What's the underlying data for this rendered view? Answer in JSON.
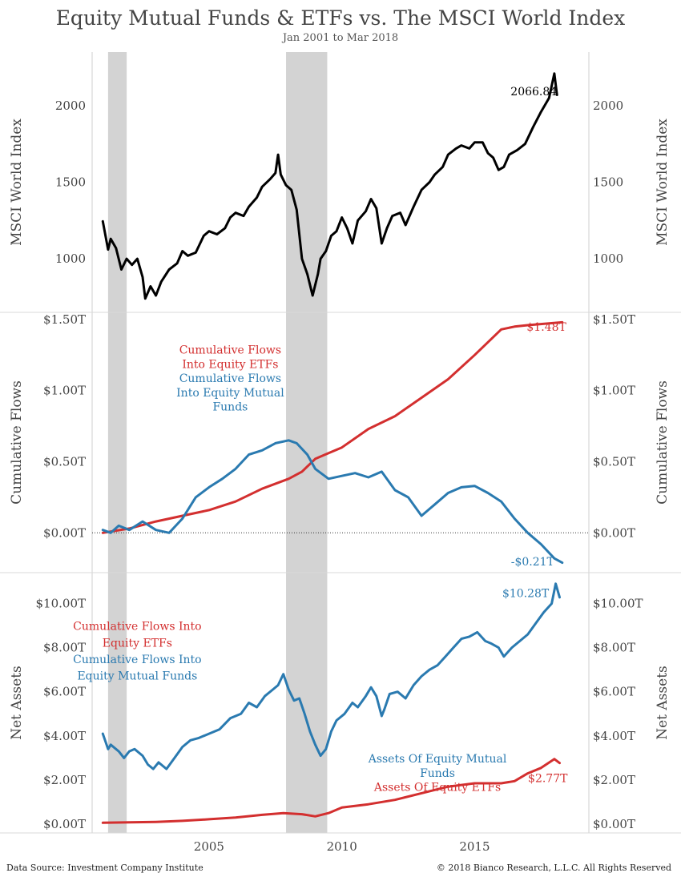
{
  "header": {
    "title": "Equity Mutual Funds & ETFs vs. The MSCI World Index",
    "subtitle": "Jan 2001 to Mar 2018"
  },
  "footer": {
    "source": "Data Source: Investment Company Institute",
    "copyright": "© 2018 Bianco Research, L.L.C. All Rights Reserved"
  },
  "colors": {
    "msci": "#000000",
    "etf": "#d32f2f",
    "mutual": "#2a7ab0",
    "recession": "#d3d3d3"
  },
  "chart_data": {
    "type": "line",
    "x_ticks": [
      2005,
      2010,
      2015
    ],
    "xlim": [
      2000.6,
      2019.3
    ],
    "recessions": [
      [
        2001.2,
        2001.9
      ],
      [
        2007.9,
        2009.45
      ]
    ],
    "panels": [
      {
        "id": "msci",
        "ylabel": "MSCI World Index",
        "ylim": [
          650,
          2350
        ],
        "y_ticks": [
          1000,
          1500,
          2000
        ],
        "y_tick_labels": [
          "1000",
          "1500",
          "2000"
        ],
        "annotations": [],
        "end_labels": [
          {
            "series": "MSCI World Index",
            "text": "2066.84",
            "x": 2018.1,
            "y": 2066.84
          }
        ],
        "series": [
          {
            "color": "msci",
            "x": [
              2001.0,
              2001.2,
              2001.3,
              2001.5,
              2001.7,
              2001.9,
              2002.1,
              2002.3,
              2002.5,
              2002.6,
              2002.8,
              2003.0,
              2003.2,
              2003.5,
              2003.8,
              2004.0,
              2004.2,
              2004.5,
              2004.8,
              2005.0,
              2005.3,
              2005.6,
              2005.8,
              2006.0,
              2006.3,
              2006.5,
              2006.8,
              2007.0,
              2007.3,
              2007.5,
              2007.6,
              2007.7,
              2007.9,
              2008.1,
              2008.3,
              2008.5,
              2008.7,
              2008.9,
              2009.1,
              2009.2,
              2009.4,
              2009.6,
              2009.8,
              2010.0,
              2010.2,
              2010.4,
              2010.6,
              2010.9,
              2011.1,
              2011.3,
              2011.5,
              2011.7,
              2011.9,
              2012.2,
              2012.4,
              2012.7,
              2013.0,
              2013.3,
              2013.5,
              2013.8,
              2014.0,
              2014.3,
              2014.5,
              2014.8,
              2015.0,
              2015.3,
              2015.5,
              2015.7,
              2015.9,
              2016.1,
              2016.3,
              2016.6,
              2016.9,
              2017.2,
              2017.5,
              2017.8,
              2018.0,
              2018.1
            ],
            "y": [
              1245,
              1060,
              1130,
              1070,
              930,
              1000,
              960,
              1000,
              880,
              740,
              820,
              760,
              850,
              930,
              970,
              1050,
              1020,
              1040,
              1150,
              1180,
              1160,
              1200,
              1270,
              1300,
              1280,
              1340,
              1400,
              1470,
              1520,
              1560,
              1680,
              1550,
              1480,
              1450,
              1320,
              1000,
              900,
              760,
              900,
              1000,
              1050,
              1150,
              1180,
              1270,
              1200,
              1100,
              1250,
              1310,
              1390,
              1330,
              1100,
              1200,
              1280,
              1300,
              1220,
              1340,
              1450,
              1500,
              1550,
              1600,
              1680,
              1720,
              1740,
              1720,
              1760,
              1760,
              1690,
              1660,
              1580,
              1600,
              1680,
              1710,
              1750,
              1860,
              1960,
              2050,
              2210,
              2070
            ]
          }
        ]
      },
      {
        "id": "flows",
        "ylabel": "Cumulative Flows",
        "ylim": [
          -0.28,
          1.55
        ],
        "y_ticks": [
          0.0,
          0.5,
          1.0,
          1.5
        ],
        "y_tick_labels": [
          "$0.00T",
          "$0.50T",
          "$1.00T",
          "$1.50T"
        ],
        "zero_line": true,
        "annotations": [
          {
            "text": "Cumulative Flows",
            "color": "etf",
            "x": 2005.8,
            "y": 1.26
          },
          {
            "text": "Into Equity ETFs",
            "color": "etf",
            "x": 2005.8,
            "y": 1.16
          },
          {
            "text": "Cumulative Flows",
            "color": "mutual",
            "x": 2005.8,
            "y": 1.06
          },
          {
            "text": "Into Equity Mutual",
            "color": "mutual",
            "x": 2005.8,
            "y": 0.96
          },
          {
            "text": "Funds",
            "color": "mutual",
            "x": 2005.8,
            "y": 0.86
          }
        ],
        "end_labels": [
          {
            "series": "Cumulative Flows Into Equity ETFs",
            "text": "$1.48T",
            "x": 2018.45,
            "y": 1.42
          },
          {
            "series": "Cumulative Flows Into Equity Mutual Funds",
            "text": "-$0.21T",
            "x": 2018.0,
            "y": -0.23
          }
        ],
        "series": [
          {
            "color": "etf",
            "x": [
              2001.0,
              2002.0,
              2003.0,
              2004.0,
              2005.0,
              2006.0,
              2007.0,
              2008.0,
              2008.5,
              2009.0,
              2009.5,
              2010.0,
              2011.0,
              2012.0,
              2013.0,
              2014.0,
              2015.0,
              2016.0,
              2016.5,
              2017.0,
              2018.3
            ],
            "y": [
              0.0,
              0.03,
              0.08,
              0.12,
              0.16,
              0.22,
              0.31,
              0.38,
              0.43,
              0.52,
              0.56,
              0.6,
              0.73,
              0.82,
              0.95,
              1.08,
              1.25,
              1.43,
              1.45,
              1.46,
              1.48
            ]
          },
          {
            "color": "mutual",
            "x": [
              2001.0,
              2001.3,
              2001.6,
              2002.0,
              2002.5,
              2003.0,
              2003.5,
              2004.0,
              2004.5,
              2005.0,
              2005.5,
              2006.0,
              2006.5,
              2007.0,
              2007.5,
              2008.0,
              2008.3,
              2008.7,
              2009.0,
              2009.5,
              2010.0,
              2010.5,
              2011.0,
              2011.5,
              2012.0,
              2012.5,
              2013.0,
              2013.5,
              2014.0,
              2014.5,
              2015.0,
              2015.5,
              2016.0,
              2016.5,
              2017.0,
              2017.5,
              2018.0,
              2018.3
            ],
            "y": [
              0.02,
              0.0,
              0.05,
              0.02,
              0.08,
              0.02,
              0.0,
              0.1,
              0.25,
              0.32,
              0.38,
              0.45,
              0.55,
              0.58,
              0.63,
              0.65,
              0.63,
              0.55,
              0.45,
              0.38,
              0.4,
              0.42,
              0.39,
              0.43,
              0.3,
              0.25,
              0.12,
              0.2,
              0.28,
              0.32,
              0.33,
              0.28,
              0.22,
              0.1,
              0.0,
              -0.08,
              -0.18,
              -0.21
            ]
          }
        ]
      },
      {
        "id": "assets",
        "ylabel": "Net Assets",
        "ylim": [
          -0.4,
          11.4
        ],
        "y_ticks": [
          0,
          2,
          4,
          6,
          8,
          10
        ],
        "y_tick_labels": [
          "$0.00T",
          "$2.00T",
          "$4.00T",
          "$6.00T",
          "$8.00T",
          "$10.00T"
        ],
        "annotations": [
          {
            "text": "Cumulative Flows Into",
            "color": "etf",
            "x": 2002.3,
            "y": 8.8
          },
          {
            "text": "Equity ETFs",
            "color": "etf",
            "x": 2002.3,
            "y": 8.05
          },
          {
            "text": "Cumulative Flows Into",
            "color": "mutual",
            "x": 2002.3,
            "y": 7.3
          },
          {
            "text": "Equity Mutual Funds",
            "color": "mutual",
            "x": 2002.3,
            "y": 6.55
          },
          {
            "text": "Assets Of Equity Mutual",
            "color": "mutual",
            "x": 2013.6,
            "y": 2.8
          },
          {
            "text": "Funds",
            "color": "mutual",
            "x": 2013.6,
            "y": 2.15
          },
          {
            "text": "Assets Of Equity ETFs",
            "color": "etf",
            "x": 2013.6,
            "y": 1.5
          }
        ],
        "end_labels": [
          {
            "series": "Assets Of Equity Mutual Funds",
            "text": "$10.28T",
            "x": 2017.8,
            "y": 10.3
          },
          {
            "series": "Assets Of Equity ETFs",
            "text": "$2.77T",
            "x": 2018.5,
            "y": 1.9
          }
        ],
        "series": [
          {
            "color": "mutual",
            "x": [
              2001.0,
              2001.2,
              2001.3,
              2001.6,
              2001.8,
              2002.0,
              2002.2,
              2002.5,
              2002.7,
              2002.9,
              2003.1,
              2003.4,
              2003.7,
              2004.0,
              2004.3,
              2004.6,
              2005.0,
              2005.4,
              2005.8,
              2006.2,
              2006.5,
              2006.8,
              2007.1,
              2007.4,
              2007.6,
              2007.8,
              2008.0,
              2008.2,
              2008.4,
              2008.6,
              2008.8,
              2009.0,
              2009.2,
              2009.4,
              2009.6,
              2009.8,
              2010.1,
              2010.4,
              2010.6,
              2010.9,
              2011.1,
              2011.3,
              2011.5,
              2011.6,
              2011.8,
              2012.1,
              2012.4,
              2012.7,
              2013.0,
              2013.3,
              2013.6,
              2013.9,
              2014.2,
              2014.5,
              2014.8,
              2015.1,
              2015.4,
              2015.6,
              2015.9,
              2016.1,
              2016.4,
              2016.7,
              2017.0,
              2017.3,
              2017.6,
              2017.9,
              2018.05,
              2018.2
            ],
            "y": [
              4.1,
              3.4,
              3.6,
              3.3,
              3.0,
              3.3,
              3.4,
              3.1,
              2.7,
              2.5,
              2.8,
              2.5,
              3.0,
              3.5,
              3.8,
              3.9,
              4.1,
              4.3,
              4.8,
              5.0,
              5.5,
              5.3,
              5.8,
              6.1,
              6.3,
              6.8,
              6.1,
              5.6,
              5.7,
              5.0,
              4.2,
              3.6,
              3.1,
              3.4,
              4.2,
              4.7,
              5.0,
              5.5,
              5.3,
              5.8,
              6.2,
              5.8,
              4.9,
              5.2,
              5.9,
              6.0,
              5.7,
              6.3,
              6.7,
              7.0,
              7.2,
              7.6,
              8.0,
              8.4,
              8.5,
              8.7,
              8.3,
              8.2,
              8.0,
              7.6,
              8.0,
              8.3,
              8.6,
              9.1,
              9.6,
              10.0,
              10.9,
              10.28
            ]
          },
          {
            "color": "etf",
            "x": [
              2001.0,
              2002.0,
              2003.0,
              2004.0,
              2005.0,
              2006.0,
              2007.0,
              2007.8,
              2008.5,
              2009.0,
              2009.5,
              2010.0,
              2011.0,
              2012.0,
              2013.0,
              2014.0,
              2015.0,
              2016.0,
              2016.5,
              2017.0,
              2017.5,
              2018.0,
              2018.2
            ],
            "y": [
              0.06,
              0.08,
              0.1,
              0.15,
              0.22,
              0.3,
              0.42,
              0.5,
              0.45,
              0.35,
              0.5,
              0.75,
              0.9,
              1.1,
              1.4,
              1.7,
              1.85,
              1.85,
              1.95,
              2.3,
              2.55,
              2.95,
              2.77
            ]
          }
        ]
      }
    ]
  }
}
